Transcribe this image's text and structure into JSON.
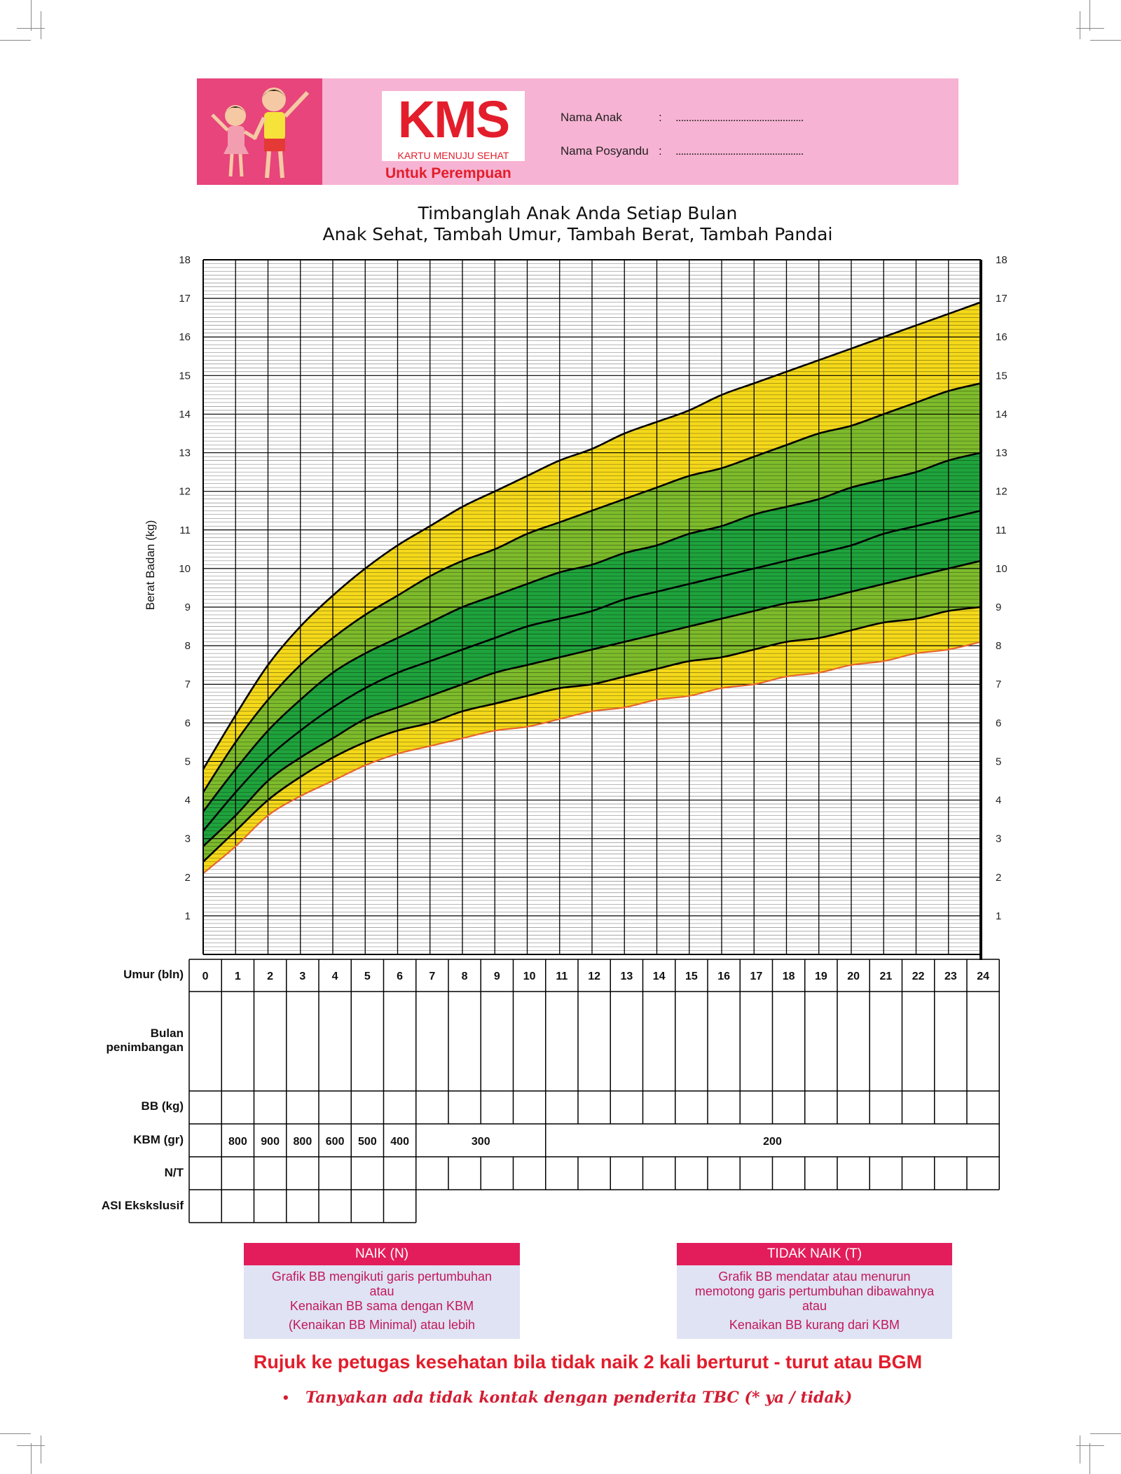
{
  "header": {
    "logo_text": "KMS",
    "logo_subtitle": "KARTU MENUJU SEHAT",
    "gender_label": "Untuk Perempuan",
    "fields": [
      {
        "label": "Nama Anak",
        "colon": ":",
        "placeholder": "................................................."
      },
      {
        "label": "Nama Posyandu",
        "colon": ":",
        "placeholder": "................................................."
      }
    ],
    "colors": {
      "band": "#f7b3d3",
      "kids_bg": "#e7457b",
      "logo_red": "#e31d2b"
    }
  },
  "title_line_1": "Timbanglah Anak Anda Setiap Bulan",
  "title_line_2": "Anak Sehat, Tambah Umur, Tambah Berat, Tambah Pandai",
  "chart_data": {
    "type": "line",
    "title": "Timbanglah Anak Anda Setiap Bulan",
    "subtitle": "Anak Sehat, Tambah Umur, Tambah Berat, Tambah Pandai",
    "xlabel": "Umur (bln)",
    "ylabel": "Berat Badan (kg)",
    "xlim": [
      0,
      24
    ],
    "ylim": [
      0,
      18
    ],
    "x_ticks": [
      0,
      1,
      2,
      3,
      4,
      5,
      6,
      7,
      8,
      9,
      10,
      11,
      12,
      13,
      14,
      15,
      16,
      17,
      18,
      19,
      20,
      21,
      22,
      23,
      24
    ],
    "y_ticks": [
      1,
      2,
      3,
      4,
      5,
      6,
      7,
      8,
      9,
      10,
      11,
      12,
      13,
      14,
      15,
      16,
      17,
      18
    ],
    "y_minor_step": 0.1,
    "grid": true,
    "x": [
      0,
      1,
      2,
      3,
      4,
      5,
      6,
      7,
      8,
      9,
      10,
      11,
      12,
      13,
      14,
      15,
      16,
      17,
      18,
      19,
      20,
      21,
      22,
      23,
      24
    ],
    "series": [
      {
        "values": [
          2.1,
          2.8,
          3.6,
          4.1,
          4.5,
          4.9,
          5.2,
          5.4,
          5.6,
          5.8,
          5.9,
          6.1,
          6.3,
          6.4,
          6.6,
          6.7,
          6.9,
          7.0,
          7.2,
          7.3,
          7.5,
          7.6,
          7.8,
          7.9,
          8.1
        ],
        "color": "#e8652b"
      },
      {
        "values": [
          2.4,
          3.2,
          4.0,
          4.6,
          5.1,
          5.5,
          5.8,
          6.0,
          6.3,
          6.5,
          6.7,
          6.9,
          7.0,
          7.2,
          7.4,
          7.6,
          7.7,
          7.9,
          8.1,
          8.2,
          8.4,
          8.6,
          8.7,
          8.9,
          9.0
        ],
        "color": "#000000"
      },
      {
        "values": [
          2.8,
          3.6,
          4.5,
          5.1,
          5.6,
          6.1,
          6.4,
          6.7,
          7.0,
          7.3,
          7.5,
          7.7,
          7.9,
          8.1,
          8.3,
          8.5,
          8.7,
          8.9,
          9.1,
          9.2,
          9.4,
          9.6,
          9.8,
          10.0,
          10.2
        ],
        "color": "#000000"
      },
      {
        "values": [
          3.2,
          4.2,
          5.1,
          5.8,
          6.4,
          6.9,
          7.3,
          7.6,
          7.9,
          8.2,
          8.5,
          8.7,
          8.9,
          9.2,
          9.4,
          9.6,
          9.8,
          10.0,
          10.2,
          10.4,
          10.6,
          10.9,
          11.1,
          11.3,
          11.5
        ],
        "color": "#000000"
      },
      {
        "values": [
          3.7,
          4.8,
          5.8,
          6.6,
          7.3,
          7.8,
          8.2,
          8.6,
          9.0,
          9.3,
          9.6,
          9.9,
          10.1,
          10.4,
          10.6,
          10.9,
          11.1,
          11.4,
          11.6,
          11.8,
          12.1,
          12.3,
          12.5,
          12.8,
          13.0
        ],
        "color": "#000000"
      },
      {
        "values": [
          4.2,
          5.5,
          6.6,
          7.5,
          8.2,
          8.8,
          9.3,
          9.8,
          10.2,
          10.5,
          10.9,
          11.2,
          11.5,
          11.8,
          12.1,
          12.4,
          12.6,
          12.9,
          13.2,
          13.5,
          13.7,
          14.0,
          14.3,
          14.6,
          14.8
        ],
        "color": "#000000"
      },
      {
        "values": [
          4.8,
          6.2,
          7.5,
          8.5,
          9.3,
          10.0,
          10.6,
          11.1,
          11.6,
          12.0,
          12.4,
          12.8,
          13.1,
          13.5,
          13.8,
          14.1,
          14.5,
          14.8,
          15.1,
          15.4,
          15.7,
          16.0,
          16.3,
          16.6,
          16.9
        ],
        "color": "#000000"
      }
    ],
    "bands": [
      {
        "between": [
          0,
          1
        ],
        "color": "#f5d91a"
      },
      {
        "between": [
          1,
          2
        ],
        "color": "#7dbb2b"
      },
      {
        "between": [
          2,
          3
        ],
        "color": "#1fa33c"
      },
      {
        "between": [
          3,
          4
        ],
        "color": "#1fa33c"
      },
      {
        "between": [
          4,
          5
        ],
        "color": "#7dbb2b"
      },
      {
        "between": [
          5,
          6
        ],
        "color": "#f5d91a"
      }
    ]
  },
  "table": {
    "rows": [
      "Umur (bln)",
      "Bulan penimbangan",
      "BB (kg)",
      "KBM (gr)",
      "N/T",
      "ASI Ekskslusif"
    ],
    "ages": [
      "0",
      "1",
      "2",
      "3",
      "4",
      "5",
      "6",
      "7",
      "8",
      "9",
      "10",
      "11",
      "12",
      "13",
      "14",
      "15",
      "16",
      "17",
      "18",
      "19",
      "20",
      "21",
      "22",
      "23",
      "24"
    ],
    "kbm": [
      {
        "text": "800",
        "from": 1,
        "to": 1
      },
      {
        "text": "900",
        "from": 2,
        "to": 2
      },
      {
        "text": "800",
        "from": 3,
        "to": 3
      },
      {
        "text": "600",
        "from": 4,
        "to": 4
      },
      {
        "text": "500",
        "from": 5,
        "to": 5
      },
      {
        "text": "400",
        "from": 6,
        "to": 6
      },
      {
        "text": "300",
        "from": 7,
        "to": 10
      },
      {
        "text": "200",
        "from": 11,
        "to": 24
      }
    ]
  },
  "legend_boxes": {
    "naik": {
      "heading": "NAIK (N)",
      "lines": [
        "Grafik BB mengikuti garis pertumbuhan",
        "atau",
        "Kenaikan BB sama dengan KBM",
        "(Kenaikan BB Minimal) atau lebih"
      ]
    },
    "tidak_naik": {
      "heading": "TIDAK NAIK (T)",
      "lines": [
        "Grafik BB mendatar atau menurun",
        "memotong garis pertumbuhan dibawahnya",
        "atau",
        "Kenaikan BB kurang dari KBM"
      ]
    }
  },
  "referral_text": "Rujuk ke petugas kesehatan bila tidak naik 2 kali berturut - turut atau BGM",
  "bullet": "•",
  "tbc_question": "Tanyakan ada tidak kontak dengan penderita TBC (* ya / tidak)"
}
